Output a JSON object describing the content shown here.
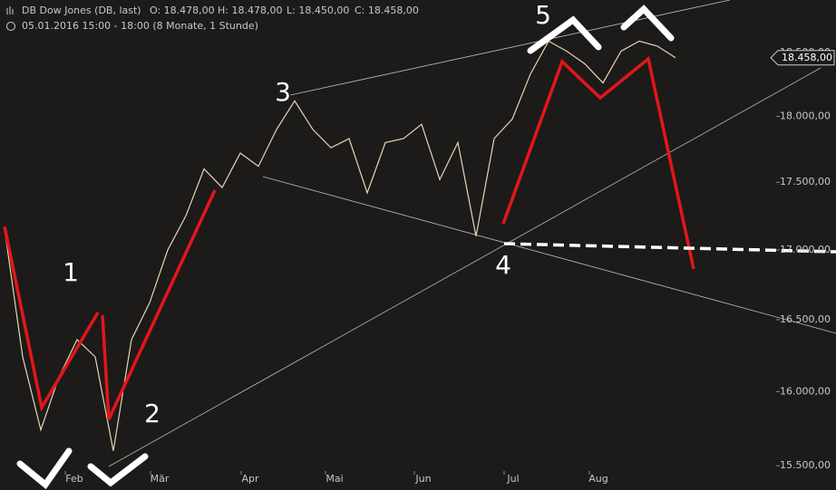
{
  "chart_data": {
    "type": "line",
    "title": "DB Dow Jones (DB, last)",
    "ohlc": [
      "O: 18.478,00",
      "H: 18.478,00",
      "L: 18.450,00",
      "C: 18.458,00"
    ],
    "subtitle": "05.01.2016 15:00 - 18:00 (8 Monate, 1 Stunde)",
    "series": [
      {
        "name": "DB Dow Jones",
        "color": "#e6d6b4",
        "values": [
          17155,
          16240,
          15740,
          16100,
          16360,
          16240,
          15600,
          16360,
          16620,
          17000,
          17250,
          17600,
          17460,
          17720,
          17620,
          17900,
          18120,
          17900,
          17760,
          17830,
          17420,
          17800,
          17830,
          17940,
          17520,
          17800,
          17100,
          17830,
          17980,
          18330,
          18590,
          18510,
          18410,
          18260,
          18510,
          18590,
          18550,
          18458
        ]
      }
    ],
    "xlim": [
      0,
      37
    ],
    "xticks": [
      {
        "value": 3.85,
        "label": "Feb"
      },
      {
        "value": 8.55,
        "label": "Mär"
      },
      {
        "value": 13.55,
        "label": "Apr"
      },
      {
        "value": 18.2,
        "label": "Mai"
      },
      {
        "value": 23.1,
        "label": "Jun"
      },
      {
        "value": 28.05,
        "label": "Jul"
      },
      {
        "value": 32.75,
        "label": "Aug"
      }
    ],
    "ylim": [
      15340,
      18920
    ],
    "log_scale": true,
    "yticks": [
      {
        "value": 15500,
        "label": "15.500,00"
      },
      {
        "value": 16000,
        "label": "16.000,00"
      },
      {
        "value": 16500,
        "label": "16.500,00"
      },
      {
        "value": 17000,
        "label": "17.000,00"
      },
      {
        "value": 17500,
        "label": "17.500,00"
      },
      {
        "value": 18000,
        "label": "18.000,00"
      },
      {
        "value": 18500,
        "label": "18.500,00"
      }
    ],
    "last_price": {
      "value": 18458,
      "label": "18.458,00"
    },
    "annotations": [
      "1",
      "2",
      "3",
      "4",
      "5"
    ]
  }
}
